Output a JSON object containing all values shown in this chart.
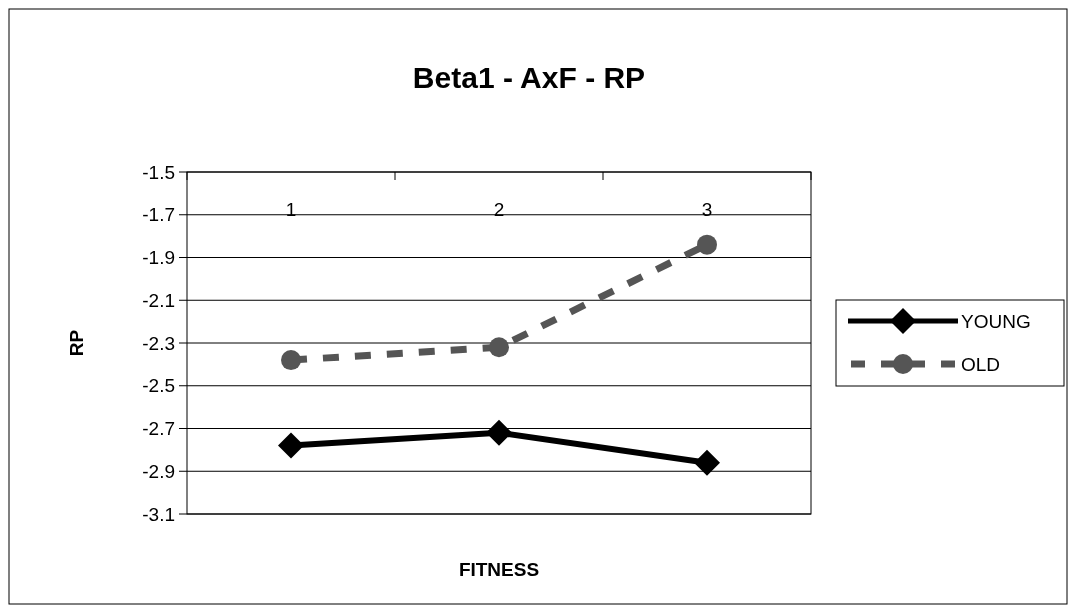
{
  "chart_data": {
    "type": "line",
    "title": "Beta1 - AxF - RP",
    "xlabel": "FITNESS",
    "ylabel": "RP",
    "categories": [
      "1",
      "2",
      "3"
    ],
    "series": [
      {
        "name": "YOUNG",
        "color": "#000000",
        "values": [
          -2.78,
          -2.72,
          -2.86
        ],
        "marker": "diamond",
        "line_style": "solid"
      },
      {
        "name": "OLD",
        "color": "#555555",
        "values": [
          -2.38,
          -2.32,
          -1.84
        ],
        "marker": "circle",
        "line_style": "dashed"
      }
    ],
    "ylim": [
      -3.1,
      -1.5
    ],
    "yticks": [
      -3.1,
      -2.9,
      -2.7,
      -2.5,
      -2.3,
      -2.1,
      -1.9,
      -1.7,
      -1.5
    ],
    "grid": "y",
    "legend": "right"
  }
}
